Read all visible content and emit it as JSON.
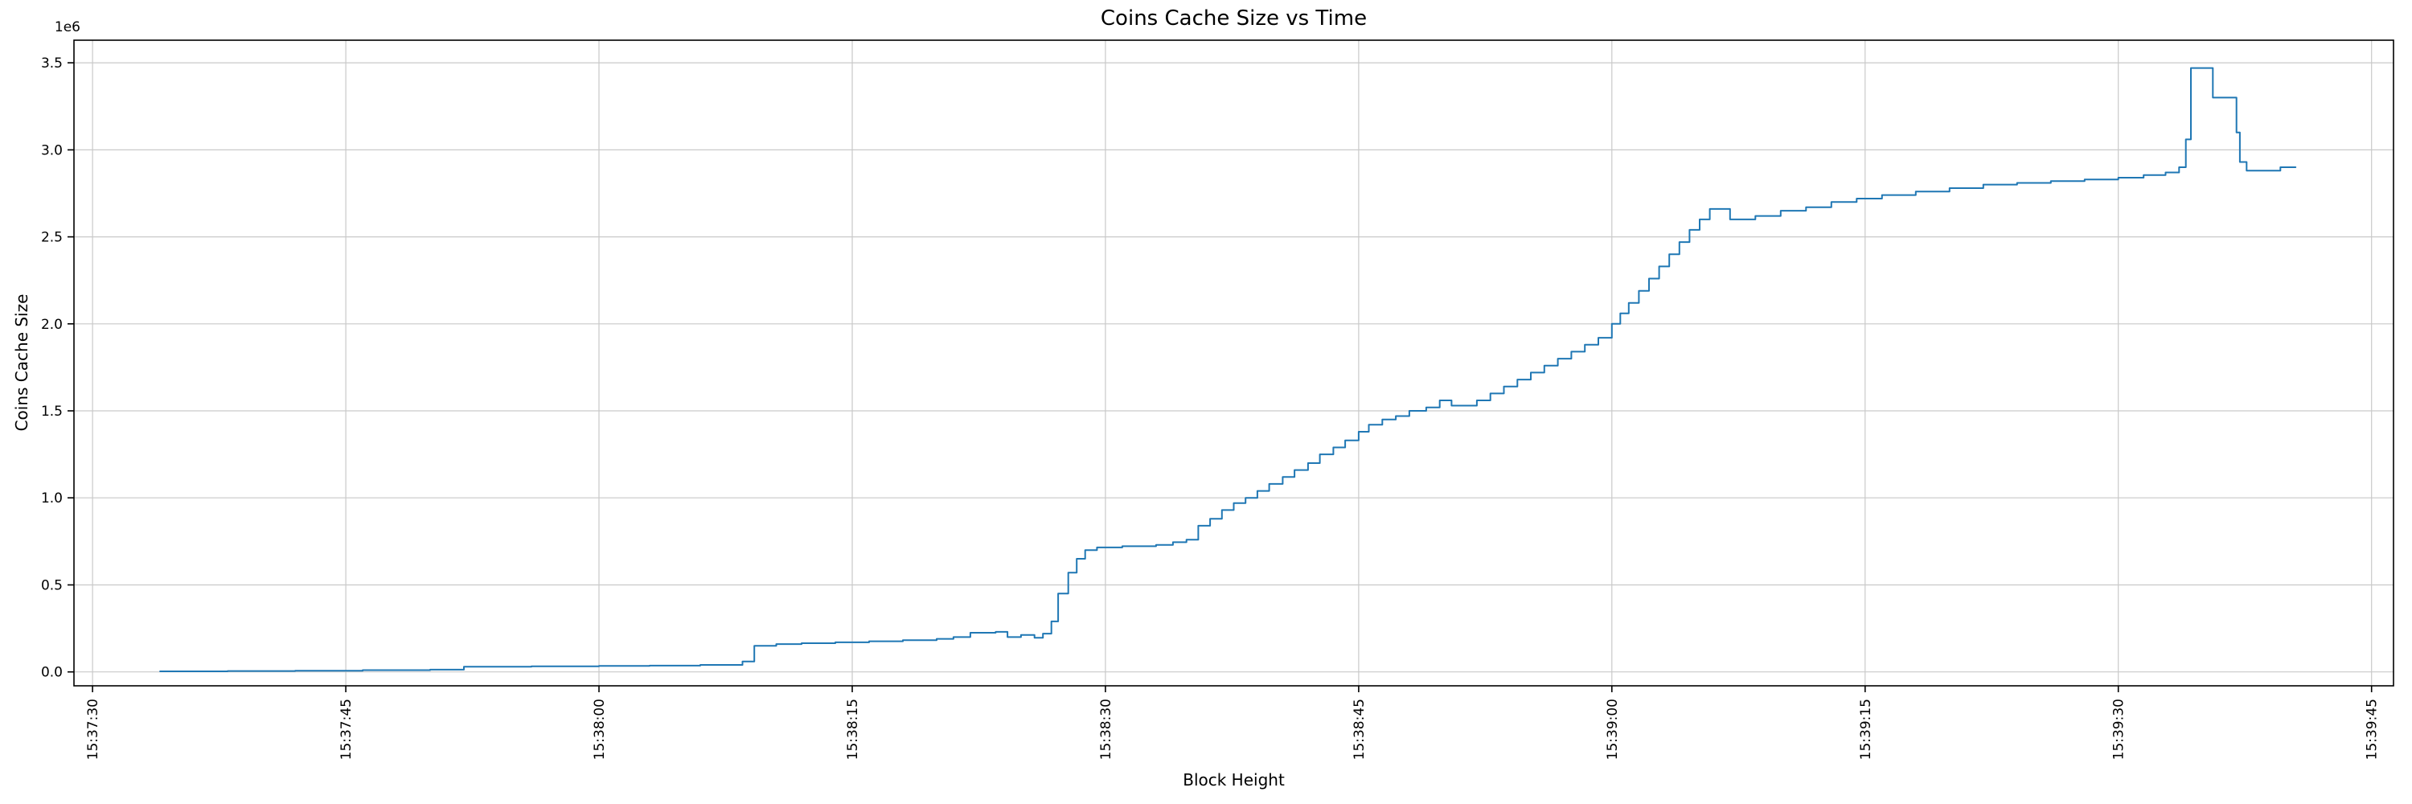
{
  "chart_data": {
    "type": "line",
    "title": "Coins Cache Size vs Time",
    "xlabel": "Block Height",
    "ylabel": "Coins Cache Size",
    "line_style": "step-post",
    "line_color": "#1f77b4",
    "grid": true,
    "grid_color": "#c9c9c9",
    "legend": "none",
    "x_axis": {
      "tick_labels": [
        "15:37:30",
        "15:37:45",
        "15:38:00",
        "15:38:15",
        "15:38:30",
        "15:38:45",
        "15:39:00",
        "15:39:15",
        "15:39:30",
        "15:39:45"
      ],
      "tick_seconds": [
        0,
        15,
        30,
        45,
        60,
        75,
        90,
        105,
        120,
        135
      ],
      "range_seconds": [
        -1.1,
        136.3
      ],
      "note": "t=0 corresponds to tick label 15:37:30; labels rotated 90 degrees"
    },
    "y_axis": {
      "tick_labels": [
        "0.0",
        "0.5",
        "1.0",
        "1.5",
        "2.0",
        "2.5",
        "3.0",
        "3.5"
      ],
      "tick_values": [
        0,
        0.5,
        1.0,
        1.5,
        2.0,
        2.5,
        3.0,
        3.5
      ],
      "range": [
        -0.08,
        3.63
      ],
      "multiplier": "1e6"
    },
    "series": [
      {
        "name": "coins-cache-size",
        "points_t_seconds_value_1e6": [
          [
            4,
            0.003
          ],
          [
            8,
            0.005
          ],
          [
            12,
            0.007
          ],
          [
            16,
            0.01
          ],
          [
            20,
            0.013
          ],
          [
            22,
            0.03
          ],
          [
            26,
            0.032
          ],
          [
            30,
            0.034
          ],
          [
            33,
            0.036
          ],
          [
            36,
            0.04
          ],
          [
            38.5,
            0.06
          ],
          [
            39.2,
            0.15
          ],
          [
            40.5,
            0.16
          ],
          [
            42,
            0.165
          ],
          [
            44,
            0.17
          ],
          [
            46,
            0.176
          ],
          [
            48,
            0.182
          ],
          [
            50,
            0.19
          ],
          [
            51,
            0.2
          ],
          [
            52,
            0.225
          ],
          [
            53.5,
            0.23
          ],
          [
            54.2,
            0.2
          ],
          [
            55,
            0.212
          ],
          [
            55.8,
            0.196
          ],
          [
            56.3,
            0.22
          ],
          [
            56.8,
            0.29
          ],
          [
            57.2,
            0.45
          ],
          [
            57.8,
            0.57
          ],
          [
            58.3,
            0.65
          ],
          [
            58.8,
            0.7
          ],
          [
            59.5,
            0.715
          ],
          [
            61,
            0.722
          ],
          [
            63,
            0.73
          ],
          [
            64,
            0.745
          ],
          [
            64.8,
            0.76
          ],
          [
            65.5,
            0.84
          ],
          [
            66.2,
            0.88
          ],
          [
            66.9,
            0.93
          ],
          [
            67.6,
            0.97
          ],
          [
            68.3,
            1.0
          ],
          [
            69,
            1.04
          ],
          [
            69.7,
            1.08
          ],
          [
            70.5,
            1.12
          ],
          [
            71.2,
            1.16
          ],
          [
            72,
            1.2
          ],
          [
            72.7,
            1.25
          ],
          [
            73.5,
            1.29
          ],
          [
            74.2,
            1.33
          ],
          [
            75,
            1.38
          ],
          [
            75.6,
            1.42
          ],
          [
            76.4,
            1.45
          ],
          [
            77.2,
            1.47
          ],
          [
            78,
            1.5
          ],
          [
            79,
            1.52
          ],
          [
            79.8,
            1.56
          ],
          [
            80.5,
            1.53
          ],
          [
            82,
            1.56
          ],
          [
            82.8,
            1.6
          ],
          [
            83.6,
            1.64
          ],
          [
            84.4,
            1.68
          ],
          [
            85.2,
            1.72
          ],
          [
            86,
            1.76
          ],
          [
            86.8,
            1.8
          ],
          [
            87.6,
            1.84
          ],
          [
            88.4,
            1.88
          ],
          [
            89.2,
            1.92
          ],
          [
            90,
            2.0
          ],
          [
            90.5,
            2.06
          ],
          [
            91,
            2.12
          ],
          [
            91.6,
            2.19
          ],
          [
            92.2,
            2.26
          ],
          [
            92.8,
            2.33
          ],
          [
            93.4,
            2.4
          ],
          [
            94,
            2.47
          ],
          [
            94.6,
            2.54
          ],
          [
            95.2,
            2.6
          ],
          [
            95.8,
            2.66
          ],
          [
            97,
            2.6
          ],
          [
            98.5,
            2.62
          ],
          [
            100,
            2.65
          ],
          [
            101.5,
            2.67
          ],
          [
            103,
            2.7
          ],
          [
            104.5,
            2.72
          ],
          [
            106,
            2.74
          ],
          [
            108,
            2.76
          ],
          [
            110,
            2.78
          ],
          [
            112,
            2.8
          ],
          [
            114,
            2.81
          ],
          [
            116,
            2.82
          ],
          [
            118,
            2.83
          ],
          [
            120,
            2.84
          ],
          [
            121.5,
            2.855
          ],
          [
            122.8,
            2.87
          ],
          [
            123.6,
            2.9
          ],
          [
            124.0,
            3.06
          ],
          [
            124.3,
            3.47
          ],
          [
            125.5,
            3.47
          ],
          [
            125.6,
            3.3
          ],
          [
            126.8,
            3.3
          ],
          [
            127.0,
            3.1
          ],
          [
            127.2,
            2.93
          ],
          [
            127.6,
            2.88
          ],
          [
            129.2,
            2.88
          ],
          [
            129.6,
            2.9
          ],
          [
            130.5,
            2.9
          ]
        ]
      }
    ]
  }
}
